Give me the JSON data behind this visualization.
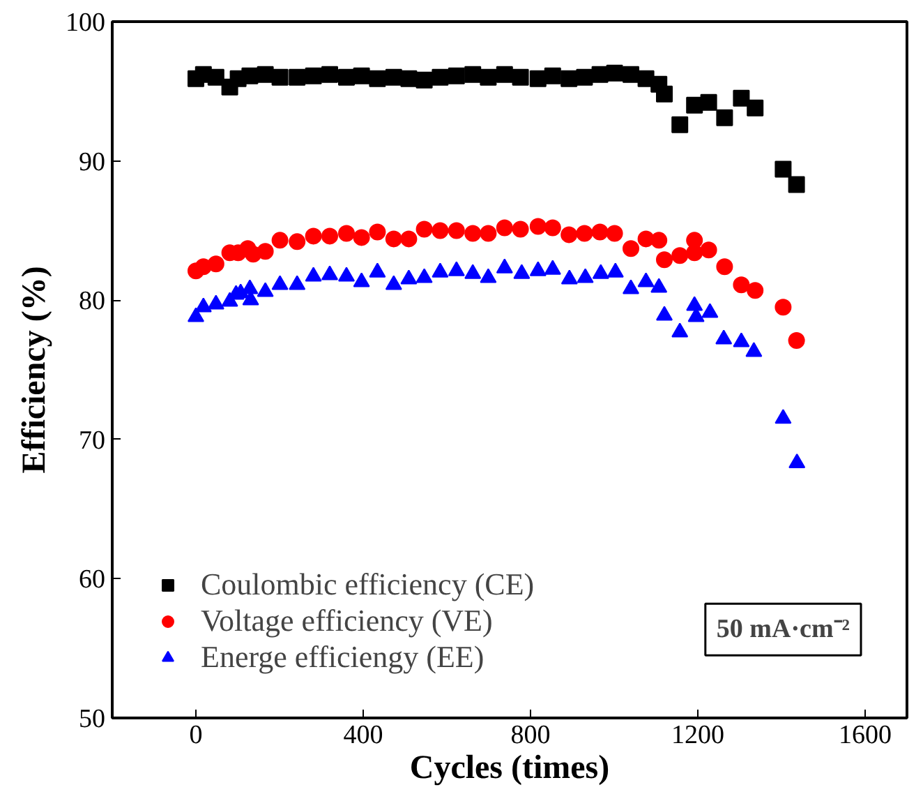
{
  "chart_data": {
    "type": "scatter",
    "xlabel": "Cycles (times)",
    "ylabel": "Efficiency (%)",
    "xlim": [
      -200,
      1700
    ],
    "ylim": [
      50,
      100
    ],
    "xticks": [
      0,
      400,
      800,
      1200,
      1600
    ],
    "yticks": [
      50,
      60,
      70,
      80,
      90,
      100
    ],
    "grid": false,
    "legend": "bottom left",
    "annotations": [
      "50 mA·cm⁻²"
    ],
    "series": [
      {
        "name": "Coulombic efficiency (CE)",
        "color": "#000000",
        "marker": "square",
        "x": [
          0,
          18,
          48,
          81,
          101,
          129,
          166,
          201,
          242,
          281,
          320,
          360,
          396,
          434,
          473,
          509,
          546,
          584,
          623,
          662,
          699,
          738,
          776,
          818,
          853,
          892,
          929,
          966,
          1001,
          1040,
          1076,
          1107,
          1120,
          1157,
          1192,
          1226,
          1264,
          1304,
          1337,
          1404,
          1436
        ],
        "values": [
          95.9,
          96.2,
          96.0,
          95.3,
          95.9,
          96.1,
          96.2,
          96.0,
          96.0,
          96.1,
          96.2,
          96.0,
          96.1,
          95.9,
          96.0,
          95.9,
          95.8,
          96.0,
          96.1,
          96.2,
          96.0,
          96.2,
          96.0,
          95.9,
          96.1,
          95.9,
          96.0,
          96.2,
          96.3,
          96.2,
          95.9,
          95.5,
          94.8,
          92.6,
          94.0,
          94.2,
          93.1,
          94.5,
          93.8,
          89.4,
          88.3
        ]
      },
      {
        "name": "Voltage efficiency (VE)",
        "color": "#ff0000",
        "marker": "circle",
        "x": [
          0,
          18,
          48,
          81,
          101,
          124,
          137,
          166,
          201,
          242,
          281,
          320,
          360,
          396,
          434,
          473,
          509,
          546,
          584,
          623,
          662,
          699,
          738,
          776,
          818,
          853,
          892,
          929,
          966,
          1001,
          1040,
          1076,
          1107,
          1120,
          1157,
          1192,
          1192,
          1226,
          1264,
          1304,
          1337,
          1404,
          1436
        ],
        "values": [
          82.1,
          82.4,
          82.6,
          83.4,
          83.4,
          83.7,
          83.3,
          83.5,
          84.3,
          84.2,
          84.6,
          84.6,
          84.8,
          84.5,
          84.9,
          84.4,
          84.4,
          85.1,
          85.0,
          85.0,
          84.8,
          84.8,
          85.2,
          85.1,
          85.3,
          85.2,
          84.7,
          84.8,
          84.9,
          84.8,
          83.7,
          84.4,
          84.3,
          82.9,
          83.2,
          84.3,
          83.4,
          83.6,
          82.4,
          81.1,
          80.7,
          79.5,
          77.1
        ]
      },
      {
        "name": "Energe efficiengy (EE)",
        "color": "#0000ff",
        "marker": "triangle",
        "x": [
          0,
          18,
          48,
          81,
          96,
          107,
          129,
          131,
          166,
          201,
          242,
          281,
          320,
          360,
          396,
          434,
          473,
          509,
          546,
          584,
          623,
          662,
          699,
          738,
          779,
          818,
          853,
          893,
          931,
          968,
          1003,
          1040,
          1076,
          1107,
          1120,
          1157,
          1192,
          1196,
          1229,
          1262,
          1304,
          1334,
          1404,
          1437
        ],
        "values": [
          78.8,
          79.5,
          79.7,
          79.9,
          80.4,
          80.5,
          80.8,
          80.0,
          80.6,
          81.1,
          81.1,
          81.7,
          81.8,
          81.7,
          81.3,
          82.0,
          81.1,
          81.5,
          81.6,
          82.0,
          82.1,
          81.9,
          81.6,
          82.3,
          81.9,
          82.1,
          82.2,
          81.5,
          81.6,
          81.9,
          82.0,
          80.8,
          81.3,
          80.9,
          78.9,
          77.7,
          79.6,
          78.8,
          79.1,
          77.2,
          77.0,
          76.3,
          71.5,
          68.3
        ]
      }
    ]
  }
}
